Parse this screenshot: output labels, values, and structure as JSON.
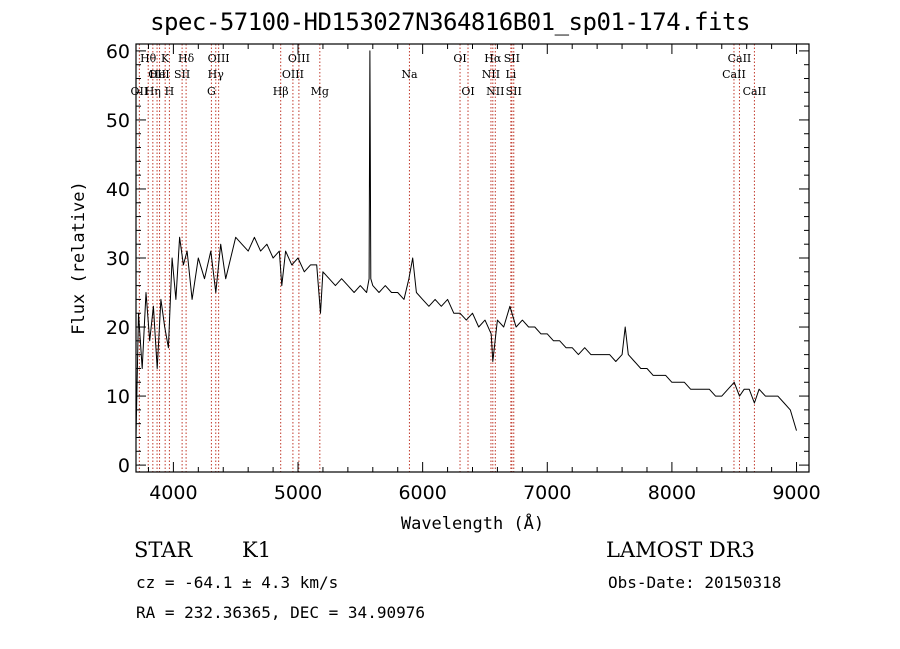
{
  "title": "spec-57100-HD153027N364816B01_sp01-174.fits",
  "footer": {
    "class_label": "STAR",
    "subclass": "K1",
    "redshift": "cz = -64.1 ± 4.3 km/s",
    "coords": "RA = 232.36365, DEC =  34.90976",
    "survey": "LAMOST DR3",
    "obs_date": "Obs-Date: 20150318"
  },
  "chart_data": {
    "type": "line",
    "title": "spec-57100-HD153027N364816B01_sp01-174.fits",
    "xlabel": "Wavelength (Å)",
    "ylabel": "Flux (relative)",
    "xlim": [
      3700,
      9100
    ],
    "ylim": [
      -1,
      61
    ],
    "xticks": [
      4000,
      5000,
      6000,
      7000,
      8000,
      9000
    ],
    "yticks": [
      0,
      10,
      20,
      30,
      40,
      50,
      60
    ],
    "grid": false,
    "legend": "none",
    "line_color": "#000000",
    "marker_line_color": "#c0392b",
    "series": [
      {
        "x": [
          3700,
          3720,
          3750,
          3780,
          3810,
          3840,
          3870,
          3900,
          3930,
          3960,
          3990,
          4020,
          4050,
          4080,
          4110,
          4150,
          4200,
          4250,
          4300,
          4340,
          4380,
          4420,
          4460,
          4500,
          4550,
          4600,
          4650,
          4700,
          4750,
          4800,
          4850,
          4870,
          4900,
          4950,
          5000,
          5050,
          5100,
          5150,
          5180,
          5200,
          5250,
          5300,
          5350,
          5400,
          5450,
          5500,
          5550,
          5570,
          5577,
          5584,
          5600,
          5650,
          5700,
          5750,
          5800,
          5850,
          5890,
          5920,
          5950,
          6000,
          6050,
          6100,
          6150,
          6200,
          6250,
          6300,
          6350,
          6400,
          6450,
          6500,
          6550,
          6563,
          6600,
          6650,
          6700,
          6750,
          6800,
          6850,
          6900,
          6950,
          7000,
          7050,
          7100,
          7150,
          7200,
          7250,
          7300,
          7350,
          7400,
          7450,
          7500,
          7550,
          7600,
          7625,
          7650,
          7700,
          7750,
          7800,
          7850,
          7900,
          7950,
          8000,
          8050,
          8100,
          8150,
          8200,
          8250,
          8300,
          8350,
          8400,
          8450,
          8500,
          8542,
          8580,
          8620,
          8662,
          8700,
          8750,
          8800,
          8850,
          8900,
          8950,
          9000
        ],
        "y": [
          4,
          22,
          14,
          25,
          18,
          23,
          14,
          24,
          20,
          17,
          30,
          24,
          33,
          29,
          31,
          24,
          30,
          27,
          31,
          25,
          32,
          27,
          30,
          33,
          32,
          31,
          33,
          31,
          32,
          30,
          31,
          26,
          31,
          29,
          30,
          28,
          29,
          29,
          22,
          28,
          27,
          26,
          27,
          26,
          25,
          26,
          25,
          27,
          60,
          27,
          26,
          25,
          26,
          25,
          25,
          24,
          27,
          30,
          25,
          24,
          23,
          24,
          23,
          24,
          22,
          22,
          21,
          22,
          20,
          21,
          19,
          15,
          21,
          20,
          23,
          20,
          21,
          20,
          20,
          19,
          19,
          18,
          18,
          17,
          17,
          16,
          17,
          16,
          16,
          16,
          16,
          15,
          16,
          20,
          16,
          15,
          14,
          14,
          13,
          13,
          13,
          12,
          12,
          12,
          11,
          11,
          11,
          11,
          10,
          10,
          11,
          12,
          10,
          11,
          11,
          9,
          11,
          10,
          10,
          10,
          9,
          8,
          5
        ]
      }
    ],
    "line_markers": [
      {
        "name": "OII",
        "wavelength": 3727,
        "row": 2
      },
      {
        "name": "Hθ",
        "wavelength": 3798,
        "row": 0
      },
      {
        "name": "Hη",
        "wavelength": 3835,
        "row": 2
      },
      {
        "name": "OII",
        "wavelength": 3869,
        "row": 1
      },
      {
        "name": "HeI",
        "wavelength": 3889,
        "row": 1
      },
      {
        "name": "K",
        "wavelength": 3934,
        "row": 0
      },
      {
        "name": "H",
        "wavelength": 3968,
        "row": 2
      },
      {
        "name": "SII",
        "wavelength": 4070,
        "row": 1
      },
      {
        "name": "Hδ",
        "wavelength": 4102,
        "row": 0
      },
      {
        "name": "G",
        "wavelength": 4305,
        "row": 2
      },
      {
        "name": "Hγ",
        "wavelength": 4340,
        "row": 1
      },
      {
        "name": "OIII",
        "wavelength": 4363,
        "row": 0
      },
      {
        "name": "Hβ",
        "wavelength": 4861,
        "row": 2
      },
      {
        "name": "OIII",
        "wavelength": 4959,
        "row": 1
      },
      {
        "name": "OIII",
        "wavelength": 5007,
        "row": 0
      },
      {
        "name": "Mg",
        "wavelength": 5175,
        "row": 2
      },
      {
        "name": "Na",
        "wavelength": 5894,
        "row": 1
      },
      {
        "name": "OI",
        "wavelength": 6300,
        "row": 0
      },
      {
        "name": "OI",
        "wavelength": 6364,
        "row": 2
      },
      {
        "name": "NII",
        "wavelength": 6548,
        "row": 1
      },
      {
        "name": "Hα",
        "wavelength": 6563,
        "row": 0
      },
      {
        "name": "NII",
        "wavelength": 6583,
        "row": 2
      },
      {
        "name": "Li",
        "wavelength": 6708,
        "row": 1
      },
      {
        "name": "SII",
        "wavelength": 6716,
        "row": 0
      },
      {
        "name": "SII",
        "wavelength": 6731,
        "row": 2
      },
      {
        "name": "CaII",
        "wavelength": 8498,
        "row": 1
      },
      {
        "name": "CaII",
        "wavelength": 8542,
        "row": 0
      },
      {
        "name": "CaII",
        "wavelength": 8662,
        "row": 2
      }
    ]
  }
}
